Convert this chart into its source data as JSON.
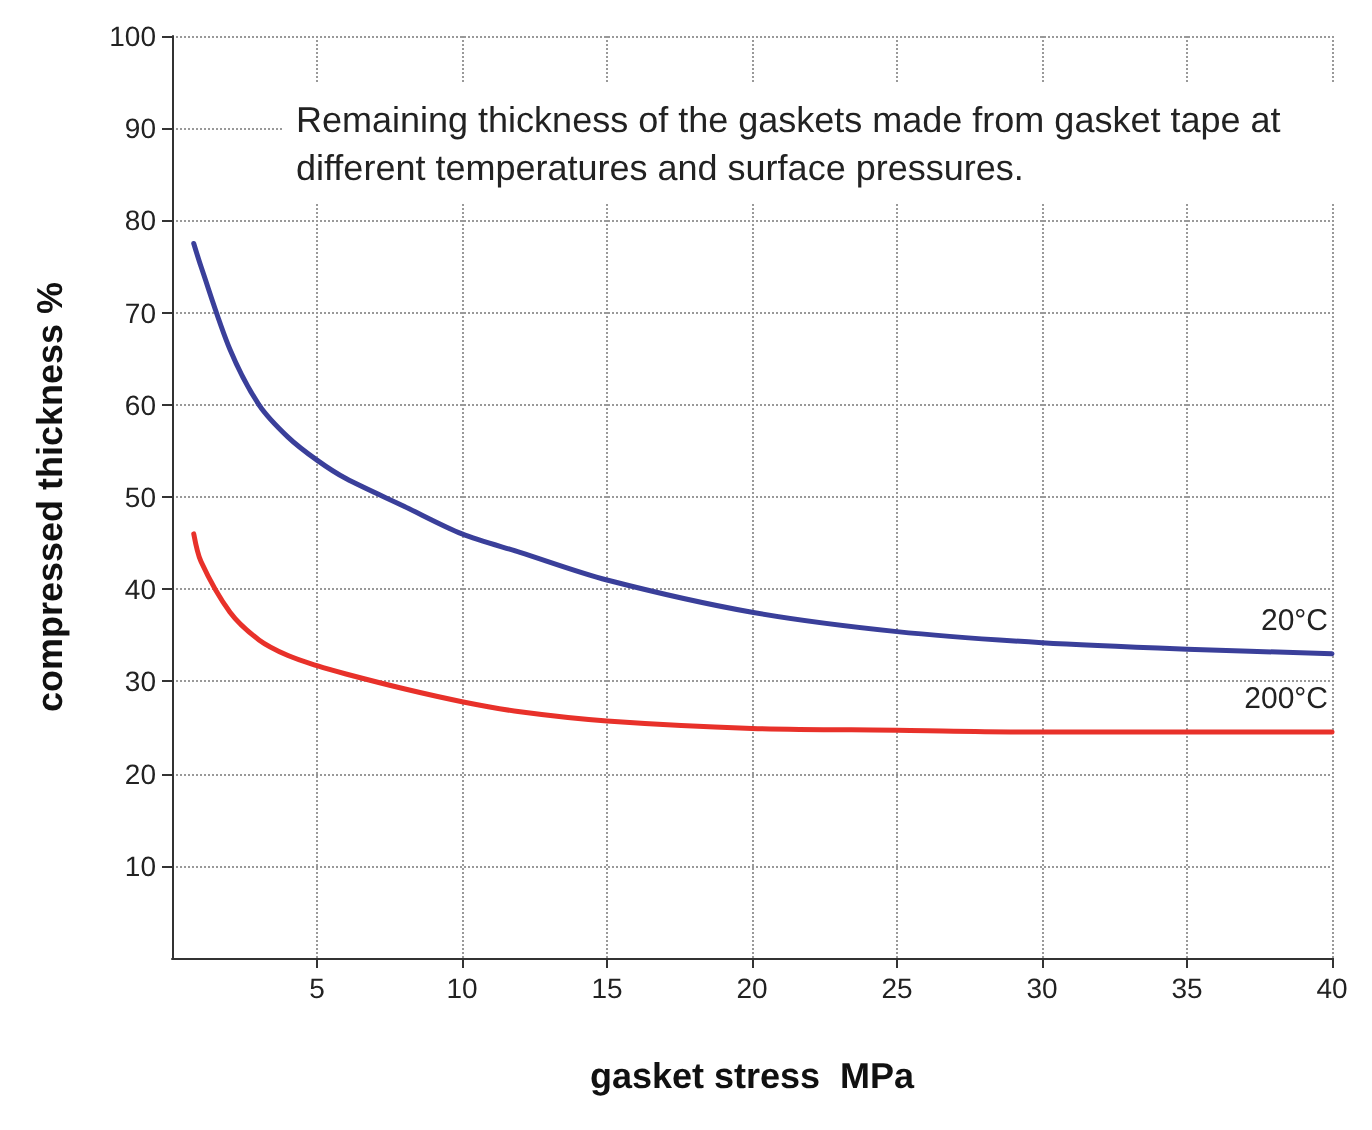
{
  "chart_data": {
    "type": "line",
    "xlabel": "gasket stress  MPa",
    "ylabel": "compressed thickness %",
    "annotations": [
      "Remaining thickness of the gaskets made from gasket tape at different temperatures and surface pressures."
    ],
    "xlim": [
      0,
      40
    ],
    "xticks": [
      5,
      10,
      15,
      20,
      25,
      30,
      35,
      40
    ],
    "ylim": [
      0,
      100
    ],
    "yticks": [
      10,
      20,
      30,
      40,
      50,
      60,
      70,
      80,
      90,
      100
    ],
    "grid": true,
    "series": [
      {
        "name": "20°C",
        "color": "#3a3f9a",
        "x": [
          0.75,
          1,
          2,
          3,
          4,
          5,
          6,
          8,
          10,
          12,
          15,
          20,
          25,
          30,
          35,
          40
        ],
        "values": [
          77.5,
          75,
          66,
          60,
          56.5,
          54,
          52,
          49,
          46,
          44,
          41,
          37.5,
          35.4,
          34.2,
          33.5,
          33
        ]
      },
      {
        "name": "200°C",
        "color": "#e8312a",
        "x": [
          0.75,
          1,
          2,
          3,
          4,
          5,
          6,
          8,
          10,
          12,
          15,
          20,
          25,
          30,
          35,
          40
        ],
        "values": [
          46,
          43,
          37.5,
          34.5,
          32.8,
          31.7,
          30.8,
          29.2,
          27.8,
          26.7,
          25.7,
          24.9,
          24.7,
          24.5,
          24.5,
          24.5
        ]
      }
    ]
  }
}
